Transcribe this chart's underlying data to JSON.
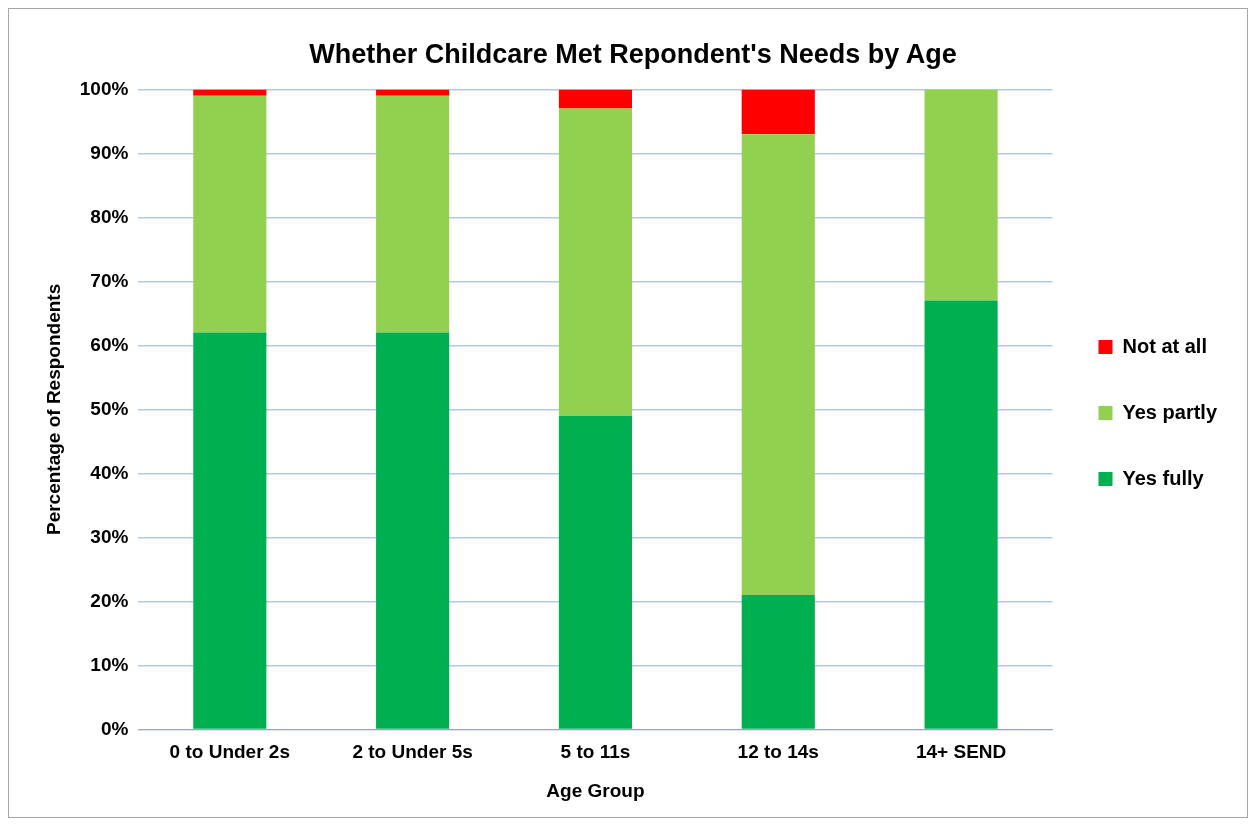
{
  "chart_data": {
    "type": "bar",
    "title": "Whether Childcare Met Repondent's Needs by Age",
    "xlabel": "Age Group",
    "ylabel": "Percentage of Respondents",
    "categories": [
      "0 to Under 2s",
      "2 to Under 5s",
      "5 to 11s",
      "12 to 14s",
      "14+ SEND"
    ],
    "series": [
      {
        "name": "Yes fully",
        "color": "#00b050",
        "values": [
          62,
          62,
          49,
          21,
          67
        ]
      },
      {
        "name": "Yes partly",
        "color": "#92d050",
        "values": [
          37,
          37,
          48,
          72,
          33
        ]
      },
      {
        "name": "Not at all",
        "color": "#ff0000",
        "values": [
          1,
          1,
          3,
          7,
          0
        ]
      }
    ],
    "stacked": true,
    "ylim": [
      0,
      100
    ],
    "yticks": [
      {
        "value": 0,
        "label": "0%"
      },
      {
        "value": 10,
        "label": "10%"
      },
      {
        "value": 20,
        "label": "20%"
      },
      {
        "value": 30,
        "label": "30%"
      },
      {
        "value": 40,
        "label": "40%"
      },
      {
        "value": 50,
        "label": "50%"
      },
      {
        "value": 60,
        "label": "60%"
      },
      {
        "value": 70,
        "label": "70%"
      },
      {
        "value": 80,
        "label": "80%"
      },
      {
        "value": 90,
        "label": "90%"
      },
      {
        "value": 100,
        "label": "100%"
      }
    ],
    "grid": "y",
    "legend": "right"
  }
}
